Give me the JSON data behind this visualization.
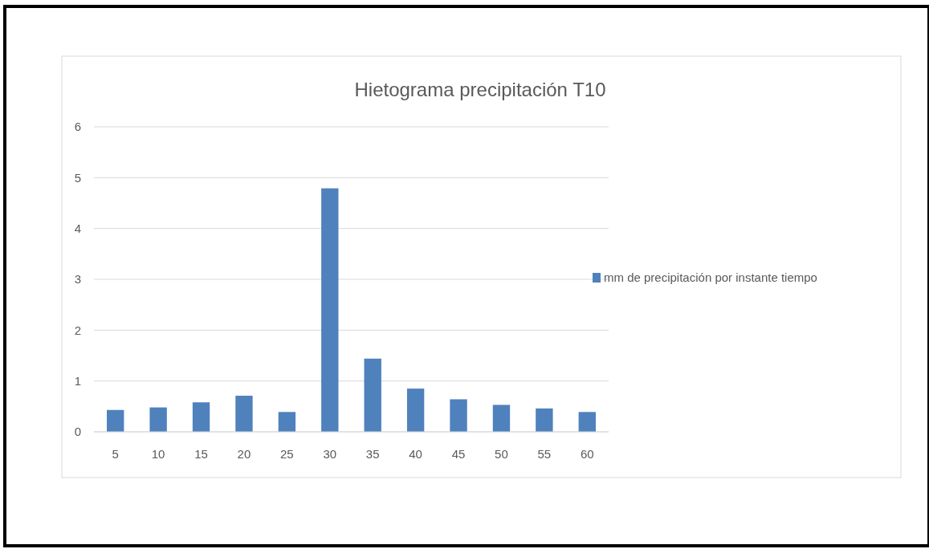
{
  "chart_data": {
    "type": "bar",
    "title": "Hietograma precipitación T10",
    "categories": [
      "5",
      "10",
      "15",
      "20",
      "25",
      "30",
      "35",
      "40",
      "45",
      "50",
      "55",
      "60"
    ],
    "series": [
      {
        "name": "mm de precipitación por instante tiempo",
        "color": "#4f81bd",
        "values": [
          0.43,
          0.48,
          0.58,
          0.71,
          0.39,
          4.79,
          1.44,
          0.85,
          0.64,
          0.53,
          0.46,
          0.39
        ]
      }
    ],
    "ylim": [
      0,
      6
    ],
    "yticks": [
      0,
      1,
      2,
      3,
      4,
      5,
      6
    ],
    "grid": "y",
    "legend": "right"
  }
}
